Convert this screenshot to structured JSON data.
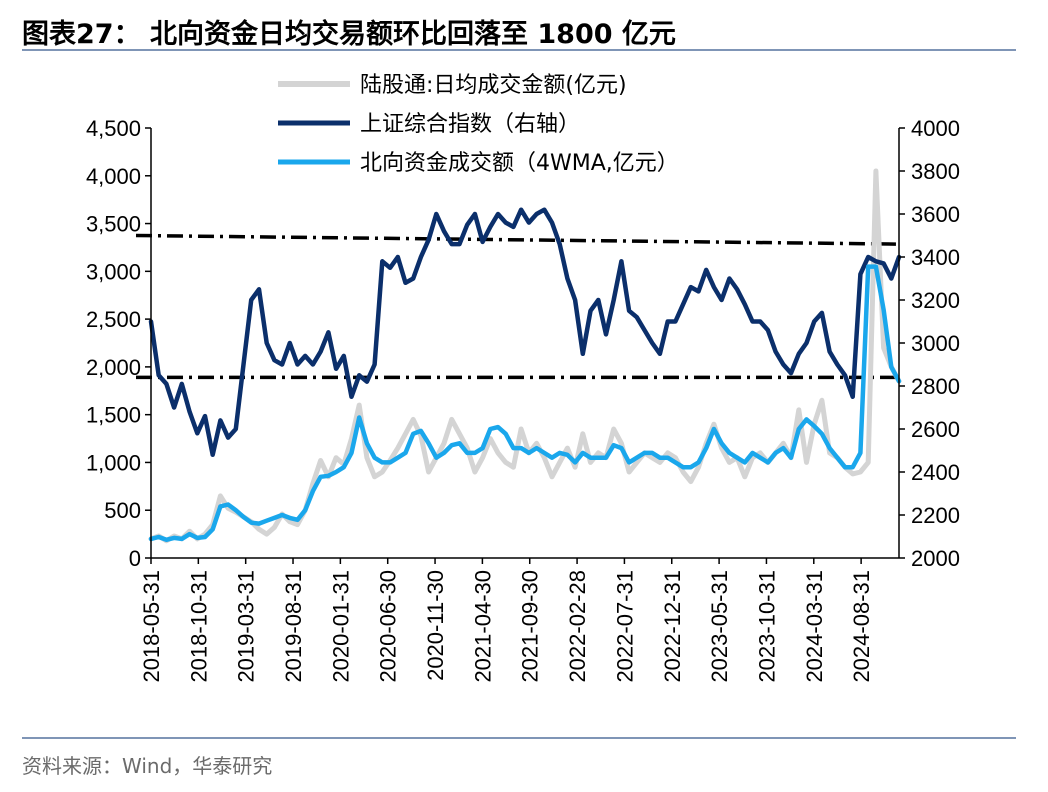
{
  "header": {
    "title": "图表27：  北向资金日均交易额环比回落至 1800 亿元"
  },
  "footer": {
    "source": "资料来源：Wind，华泰研究"
  },
  "chart_data": {
    "type": "line",
    "title": "北向资金日均交易额环比回落至 1800 亿元",
    "xlabel": "",
    "ylabel": "",
    "ylim": [
      0,
      4500
    ],
    "y2lim": [
      2000,
      4000
    ],
    "yticks": [
      "0",
      "500",
      "1,000",
      "1,500",
      "2,000",
      "2,500",
      "3,000",
      "3,500",
      "4,000",
      "4,500"
    ],
    "y2ticks": [
      "2000",
      "2200",
      "2400",
      "2600",
      "2800",
      "3000",
      "3200",
      "3400",
      "3600",
      "3800",
      "4000"
    ],
    "categories": [
      "2018-05-31",
      "2018-10-31",
      "2019-03-31",
      "2019-08-31",
      "2020-01-31",
      "2020-06-30",
      "2020-11-30",
      "2021-04-30",
      "2021-09-30",
      "2022-02-28",
      "2022-07-31",
      "2022-12-31",
      "2023-05-31",
      "2023-10-31",
      "2024-03-31",
      "2024-08-31"
    ],
    "x_start_month": "2018-05",
    "x_end_month": "2024-12",
    "series": [
      {
        "name": "陆股通:日均成交金额(亿元)",
        "axis": "left",
        "color": "#d4d4d4",
        "points": [
          [
            0,
            200
          ],
          [
            1,
            230
          ],
          [
            2,
            180
          ],
          [
            3,
            230
          ],
          [
            4,
            200
          ],
          [
            5,
            280
          ],
          [
            6,
            200
          ],
          [
            7,
            250
          ],
          [
            8,
            350
          ],
          [
            9,
            650
          ],
          [
            10,
            520
          ],
          [
            11,
            480
          ],
          [
            12,
            430
          ],
          [
            13,
            380
          ],
          [
            14,
            300
          ],
          [
            15,
            250
          ],
          [
            16,
            320
          ],
          [
            17,
            460
          ],
          [
            18,
            380
          ],
          [
            19,
            350
          ],
          [
            20,
            500
          ],
          [
            21,
            780
          ],
          [
            22,
            1020
          ],
          [
            23,
            850
          ],
          [
            24,
            1050
          ],
          [
            25,
            980
          ],
          [
            26,
            1250
          ],
          [
            27,
            1600
          ],
          [
            28,
            1050
          ],
          [
            29,
            850
          ],
          [
            30,
            900
          ],
          [
            31,
            1020
          ],
          [
            32,
            1150
          ],
          [
            33,
            1300
          ],
          [
            34,
            1450
          ],
          [
            35,
            1280
          ],
          [
            36,
            900
          ],
          [
            37,
            1050
          ],
          [
            38,
            1200
          ],
          [
            39,
            1450
          ],
          [
            40,
            1300
          ],
          [
            41,
            1150
          ],
          [
            42,
            900
          ],
          [
            43,
            1050
          ],
          [
            44,
            1250
          ],
          [
            45,
            1100
          ],
          [
            46,
            1000
          ],
          [
            47,
            950
          ],
          [
            48,
            1350
          ],
          [
            49,
            1100
          ],
          [
            50,
            1200
          ],
          [
            51,
            1050
          ],
          [
            52,
            850
          ],
          [
            53,
            1000
          ],
          [
            54,
            1150
          ],
          [
            55,
            950
          ],
          [
            56,
            1300
          ],
          [
            57,
            1000
          ],
          [
            58,
            1100
          ],
          [
            59,
            1050
          ],
          [
            60,
            1350
          ],
          [
            61,
            1200
          ],
          [
            62,
            900
          ],
          [
            63,
            1000
          ],
          [
            64,
            1100
          ],
          [
            65,
            1050
          ],
          [
            66,
            1000
          ],
          [
            67,
            1100
          ],
          [
            68,
            1050
          ],
          [
            69,
            900
          ],
          [
            70,
            800
          ],
          [
            71,
            950
          ],
          [
            72,
            1200
          ],
          [
            73,
            1400
          ],
          [
            74,
            1150
          ],
          [
            75,
            1000
          ],
          [
            76,
            1050
          ],
          [
            77,
            850
          ],
          [
            78,
            1050
          ],
          [
            79,
            1100
          ],
          [
            80,
            1000
          ],
          [
            81,
            1100
          ],
          [
            82,
            1200
          ],
          [
            83,
            1050
          ],
          [
            84,
            1550
          ],
          [
            85,
            1000
          ],
          [
            86,
            1400
          ],
          [
            87,
            1650
          ],
          [
            88,
            1100
          ],
          [
            89,
            1050
          ],
          [
            90,
            950
          ],
          [
            91,
            880
          ],
          [
            92,
            900
          ],
          [
            93,
            1000
          ],
          [
            94,
            4050
          ],
          [
            95,
            2200
          ],
          [
            96,
            2000
          ],
          [
            97,
            1850
          ]
        ]
      },
      {
        "name": "上证综合指数（右轴）",
        "axis": "right",
        "color": "#0b2f6b",
        "points": [
          [
            0,
            3100
          ],
          [
            1,
            2850
          ],
          [
            2,
            2810
          ],
          [
            3,
            2700
          ],
          [
            4,
            2810
          ],
          [
            5,
            2680
          ],
          [
            6,
            2580
          ],
          [
            7,
            2660
          ],
          [
            8,
            2480
          ],
          [
            9,
            2640
          ],
          [
            10,
            2560
          ],
          [
            11,
            2600
          ],
          [
            12,
            2900
          ],
          [
            13,
            3200
          ],
          [
            14,
            3250
          ],
          [
            15,
            3000
          ],
          [
            16,
            2920
          ],
          [
            17,
            2900
          ],
          [
            18,
            3000
          ],
          [
            19,
            2900
          ],
          [
            20,
            2940
          ],
          [
            21,
            2900
          ],
          [
            22,
            2960
          ],
          [
            23,
            3050
          ],
          [
            24,
            2880
          ],
          [
            25,
            2940
          ],
          [
            26,
            2750
          ],
          [
            27,
            2850
          ],
          [
            28,
            2820
          ],
          [
            29,
            2900
          ],
          [
            30,
            3380
          ],
          [
            31,
            3350
          ],
          [
            32,
            3400
          ],
          [
            33,
            3280
          ],
          [
            34,
            3300
          ],
          [
            35,
            3400
          ],
          [
            36,
            3480
          ],
          [
            37,
            3600
          ],
          [
            38,
            3520
          ],
          [
            39,
            3460
          ],
          [
            40,
            3460
          ],
          [
            41,
            3550
          ],
          [
            42,
            3600
          ],
          [
            43,
            3470
          ],
          [
            44,
            3540
          ],
          [
            45,
            3600
          ],
          [
            46,
            3560
          ],
          [
            47,
            3540
          ],
          [
            48,
            3620
          ],
          [
            49,
            3560
          ],
          [
            50,
            3600
          ],
          [
            51,
            3620
          ],
          [
            52,
            3560
          ],
          [
            53,
            3460
          ],
          [
            54,
            3300
          ],
          [
            55,
            3200
          ],
          [
            56,
            2950
          ],
          [
            57,
            3150
          ],
          [
            58,
            3200
          ],
          [
            59,
            3040
          ],
          [
            60,
            3200
          ],
          [
            61,
            3380
          ],
          [
            62,
            3150
          ],
          [
            63,
            3120
          ],
          [
            64,
            3060
          ],
          [
            65,
            3000
          ],
          [
            66,
            2950
          ],
          [
            67,
            3100
          ],
          [
            68,
            3100
          ],
          [
            69,
            3180
          ],
          [
            70,
            3260
          ],
          [
            71,
            3240
          ],
          [
            72,
            3340
          ],
          [
            73,
            3260
          ],
          [
            74,
            3200
          ],
          [
            75,
            3300
          ],
          [
            76,
            3250
          ],
          [
            77,
            3180
          ],
          [
            78,
            3100
          ],
          [
            79,
            3100
          ],
          [
            80,
            3060
          ],
          [
            81,
            2960
          ],
          [
            82,
            2900
          ],
          [
            83,
            2860
          ],
          [
            84,
            2950
          ],
          [
            85,
            3000
          ],
          [
            86,
            3100
          ],
          [
            87,
            3140
          ],
          [
            88,
            2960
          ],
          [
            89,
            2900
          ],
          [
            90,
            2850
          ],
          [
            91,
            2750
          ],
          [
            92,
            3320
          ],
          [
            93,
            3400
          ],
          [
            94,
            3380
          ],
          [
            95,
            3370
          ],
          [
            96,
            3300
          ],
          [
            97,
            3400
          ]
        ]
      },
      {
        "name": "北向资金成交额（4WMA,亿元）",
        "axis": "left",
        "color": "#1aa7ec",
        "points": [
          [
            0,
            200
          ],
          [
            1,
            220
          ],
          [
            2,
            190
          ],
          [
            3,
            210
          ],
          [
            4,
            200
          ],
          [
            5,
            250
          ],
          [
            6,
            210
          ],
          [
            7,
            220
          ],
          [
            8,
            300
          ],
          [
            9,
            540
          ],
          [
            10,
            560
          ],
          [
            11,
            500
          ],
          [
            12,
            430
          ],
          [
            13,
            370
          ],
          [
            14,
            360
          ],
          [
            15,
            390
          ],
          [
            16,
            420
          ],
          [
            17,
            450
          ],
          [
            18,
            420
          ],
          [
            19,
            400
          ],
          [
            20,
            500
          ],
          [
            21,
            700
          ],
          [
            22,
            850
          ],
          [
            23,
            860
          ],
          [
            24,
            900
          ],
          [
            25,
            950
          ],
          [
            26,
            1100
          ],
          [
            27,
            1470
          ],
          [
            28,
            1200
          ],
          [
            29,
            1050
          ],
          [
            30,
            1000
          ],
          [
            31,
            1000
          ],
          [
            32,
            1050
          ],
          [
            33,
            1100
          ],
          [
            34,
            1300
          ],
          [
            35,
            1330
          ],
          [
            36,
            1200
          ],
          [
            37,
            1050
          ],
          [
            38,
            1100
          ],
          [
            39,
            1180
          ],
          [
            40,
            1200
          ],
          [
            41,
            1100
          ],
          [
            42,
            1100
          ],
          [
            43,
            1150
          ],
          [
            44,
            1350
          ],
          [
            45,
            1370
          ],
          [
            46,
            1300
          ],
          [
            47,
            1150
          ],
          [
            48,
            1150
          ],
          [
            49,
            1100
          ],
          [
            50,
            1150
          ],
          [
            51,
            1100
          ],
          [
            52,
            1050
          ],
          [
            53,
            1100
          ],
          [
            54,
            1080
          ],
          [
            55,
            1000
          ],
          [
            56,
            1100
          ],
          [
            57,
            1050
          ],
          [
            58,
            1050
          ],
          [
            59,
            1050
          ],
          [
            60,
            1180
          ],
          [
            61,
            1150
          ],
          [
            62,
            1000
          ],
          [
            63,
            1050
          ],
          [
            64,
            1100
          ],
          [
            65,
            1100
          ],
          [
            66,
            1050
          ],
          [
            67,
            1050
          ],
          [
            68,
            1000
          ],
          [
            69,
            950
          ],
          [
            70,
            950
          ],
          [
            71,
            1000
          ],
          [
            72,
            1150
          ],
          [
            73,
            1350
          ],
          [
            74,
            1200
          ],
          [
            75,
            1100
          ],
          [
            76,
            1050
          ],
          [
            77,
            1000
          ],
          [
            78,
            1100
          ],
          [
            79,
            1050
          ],
          [
            80,
            1000
          ],
          [
            81,
            1100
          ],
          [
            82,
            1150
          ],
          [
            83,
            1050
          ],
          [
            84,
            1350
          ],
          [
            85,
            1450
          ],
          [
            86,
            1380
          ],
          [
            87,
            1300
          ],
          [
            88,
            1150
          ],
          [
            89,
            1050
          ],
          [
            90,
            950
          ],
          [
            91,
            950
          ],
          [
            92,
            1100
          ],
          [
            93,
            3050
          ],
          [
            94,
            3050
          ],
          [
            95,
            2600
          ],
          [
            96,
            2000
          ],
          [
            97,
            1850
          ]
        ]
      }
    ],
    "reference_lines": [
      {
        "axis": "right",
        "from": 3500,
        "to": 3460,
        "style": "dash-dot",
        "color": "#000000"
      },
      {
        "axis": "right",
        "from": 2840,
        "to": 2840,
        "style": "dash-dot",
        "color": "#000000"
      }
    ],
    "legend_position": "top-center"
  }
}
